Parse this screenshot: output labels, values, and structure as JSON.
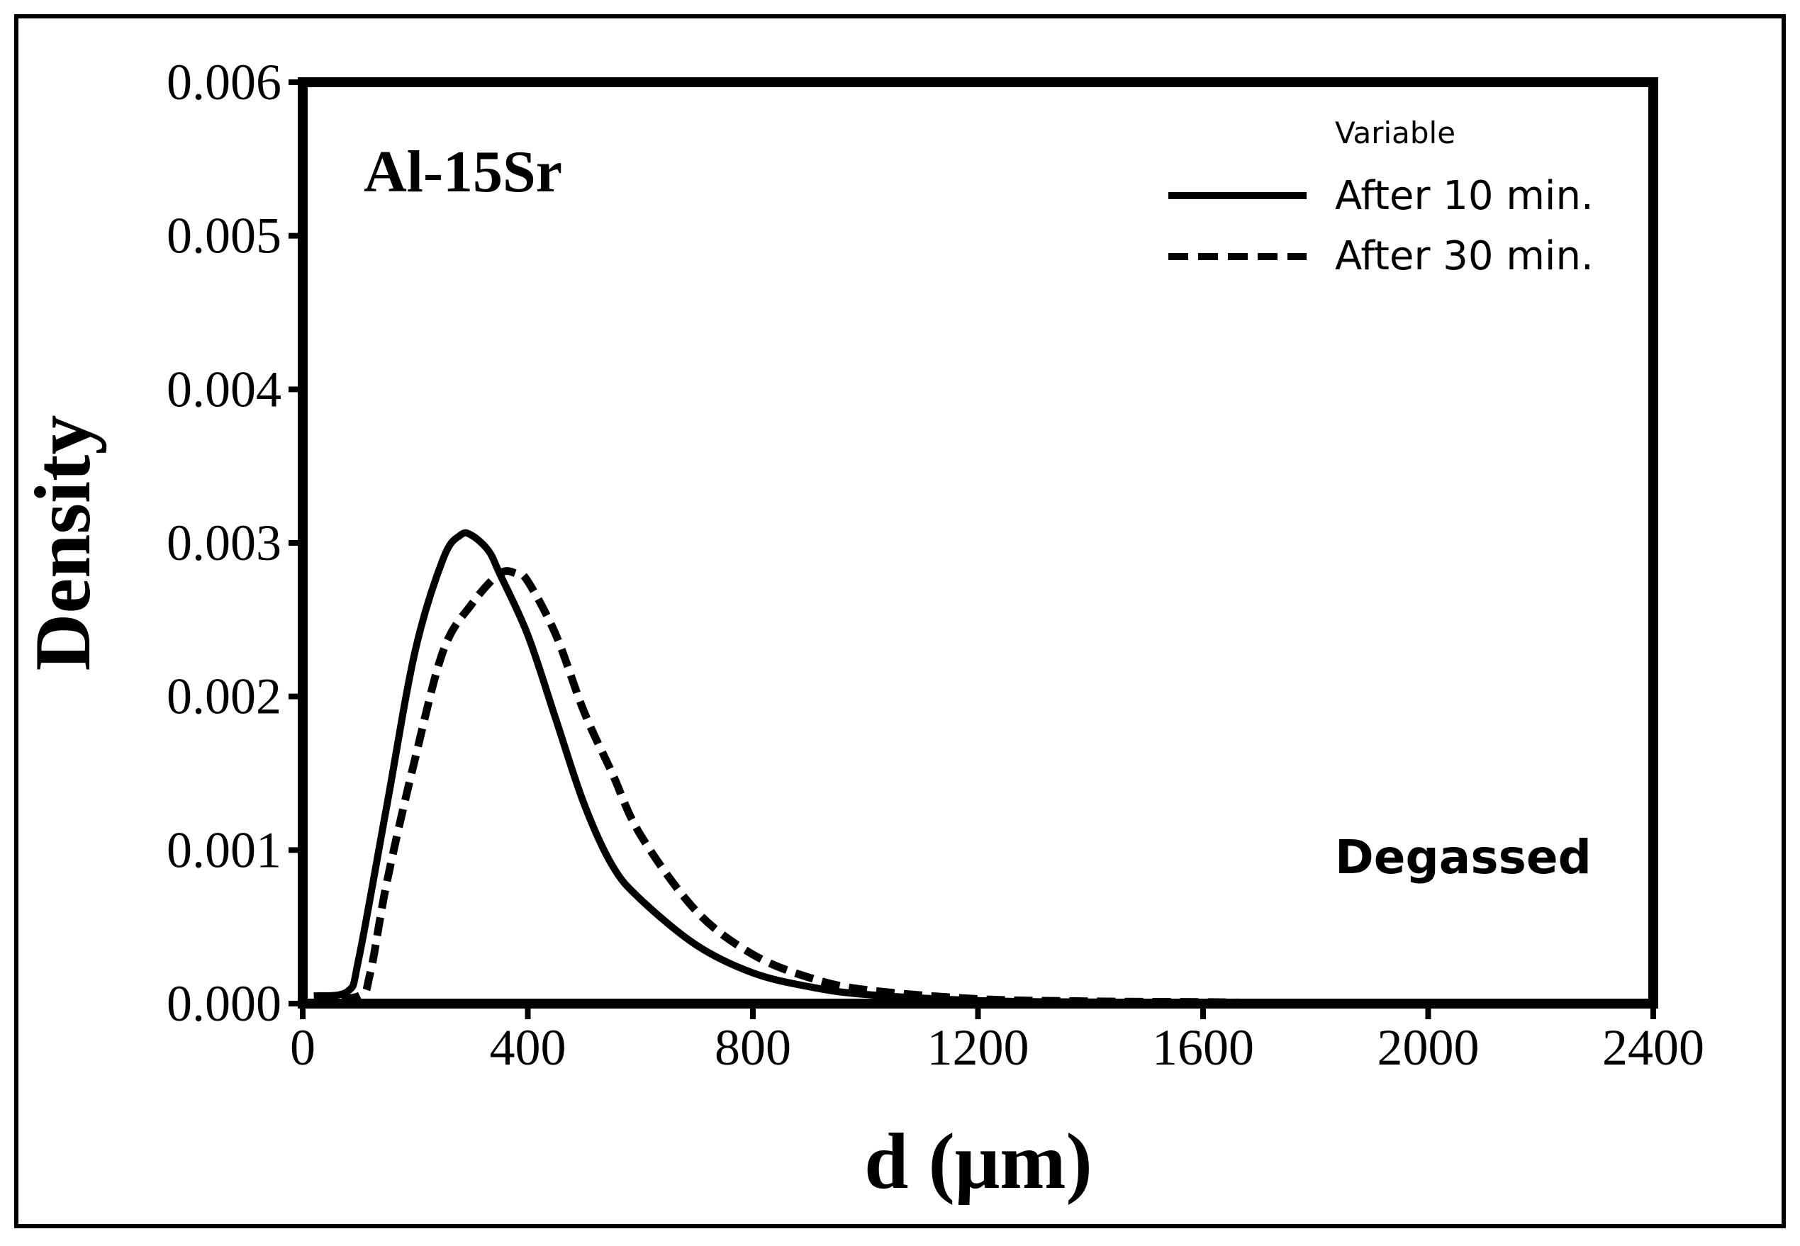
{
  "chart_data": {
    "type": "line",
    "title": "",
    "xlabel": "d (μm)",
    "ylabel": "Density",
    "xlim": [
      0,
      2400
    ],
    "ylim": [
      0,
      0.006
    ],
    "x_ticks": [
      0,
      400,
      800,
      1200,
      1600,
      2000,
      2400
    ],
    "x_tick_labels": [
      "0",
      "400",
      "800",
      "1200",
      "1600",
      "2000",
      "2400"
    ],
    "y_ticks": [
      0,
      0.001,
      0.002,
      0.003,
      0.004,
      0.005,
      0.006
    ],
    "y_tick_labels": [
      "0.000",
      "0.001",
      "0.002",
      "0.003",
      "0.004",
      "0.005",
      "0.006"
    ],
    "grid": false,
    "legend": {
      "title": "Variable",
      "position": "top-right",
      "entries": [
        "After 10 min.",
        "After 30 min."
      ]
    },
    "annotations": [
      {
        "text": "Al-15Sr",
        "position": "top-left"
      },
      {
        "text": "Degassed",
        "position": "bottom-right"
      }
    ],
    "series": [
      {
        "name": "After 10 min.",
        "style": "solid",
        "color": "#000000",
        "x": [
          20,
          80,
          100,
          150,
          200,
          250,
          280,
          300,
          330,
          350,
          400,
          450,
          500,
          550,
          600,
          700,
          800,
          900,
          1000,
          1200,
          1400,
          1600
        ],
        "y": [
          5e-05,
          8e-05,
          0.0003,
          0.0013,
          0.0023,
          0.0029,
          0.00305,
          0.00305,
          0.00295,
          0.0028,
          0.0024,
          0.00185,
          0.0013,
          0.0009,
          0.00068,
          0.00038,
          0.0002,
          0.00011,
          6e-05,
          2e-05,
          1e-05,
          5e-06
        ]
      },
      {
        "name": "After 30 min.",
        "style": "dashed",
        "color": "#000000",
        "x": [
          20,
          100,
          120,
          150,
          200,
          250,
          300,
          350,
          380,
          400,
          450,
          500,
          550,
          600,
          700,
          800,
          900,
          1000,
          1200,
          1400,
          1600,
          1700
        ],
        "y": [
          3e-05,
          5e-05,
          0.0002,
          0.0008,
          0.0016,
          0.0023,
          0.0026,
          0.0028,
          0.0028,
          0.00275,
          0.0024,
          0.0019,
          0.0015,
          0.0011,
          0.0006,
          0.00032,
          0.00017,
          9e-05,
          3e-05,
          1.5e-05,
          1e-05,
          5e-06
        ]
      }
    ]
  }
}
